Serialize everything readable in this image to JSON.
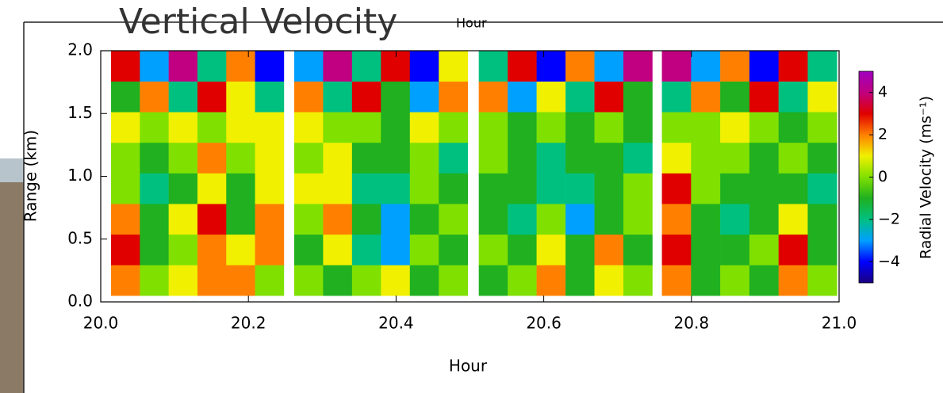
{
  "chart_data": {
    "type": "heatmap",
    "title": "Vertical Velocity",
    "top_xlabel": "Hour",
    "xlabel": "Hour",
    "ylabel": "Range (km)",
    "colorbar_label": "Radial Velocity (ms⁻¹)",
    "xlim": [
      20.0,
      21.0
    ],
    "xticks": [
      {
        "value": 20.0,
        "label": "20.0"
      },
      20.2,
      20.4,
      20.6,
      20.8,
      {
        "value": 21.0,
        "label": "21.0"
      }
    ],
    "ylim": [
      0.0,
      2.0
    ],
    "yticks": [
      {
        "value": 0.0,
        "label": "0.0"
      },
      0.5,
      {
        "value": 1.0,
        "label": "1.0"
      },
      1.5,
      {
        "value": 2.0,
        "label": "2.0"
      }
    ],
    "zlim": [
      -5,
      5
    ],
    "zticks": [
      {
        "value": -4,
        "label": "−4"
      },
      {
        "value": -2,
        "label": "−2"
      },
      0,
      2,
      4
    ],
    "colormap": [
      "#1a0080",
      "#0000ff",
      "#00a0ff",
      "#00c080",
      "#20b020",
      "#80e000",
      "#f0f000",
      "#ff8000",
      "#e00000",
      "#c00080",
      "#a000c0"
    ],
    "yrange": [
      0.05,
      2.0
    ],
    "panels": [
      {
        "x": [
          20.014,
          20.248
        ],
        "z": [
          [
            2,
            0,
            1,
            2,
            2,
            0
          ],
          [
            3,
            -1,
            0,
            2,
            1,
            2
          ],
          [
            2,
            -1,
            1,
            3,
            -1,
            2
          ],
          [
            0,
            -2,
            -1,
            1,
            -1,
            1
          ],
          [
            0,
            -1,
            0,
            2,
            0,
            1
          ],
          [
            1,
            0,
            1,
            0,
            1,
            1
          ],
          [
            -1,
            2,
            -2,
            3,
            1,
            -2
          ],
          [
            3,
            -3,
            4,
            -2,
            2,
            -4
          ]
        ]
      },
      {
        "x": [
          20.262,
          20.497
        ],
        "z": [
          [
            0,
            -1,
            0,
            1,
            -1,
            0
          ],
          [
            -1,
            1,
            -2,
            -3,
            0,
            -1
          ],
          [
            0,
            2,
            -1,
            -3,
            -1,
            0
          ],
          [
            1,
            1,
            -2,
            -2,
            0,
            -1
          ],
          [
            0,
            1,
            -1,
            -1,
            0,
            -2
          ],
          [
            1,
            0,
            0,
            -1,
            1,
            0
          ],
          [
            2,
            -2,
            3,
            -1,
            -3,
            2
          ],
          [
            -3,
            4,
            -2,
            3,
            -4,
            1
          ]
        ]
      },
      {
        "x": [
          20.512,
          20.747
        ],
        "z": [
          [
            -1,
            0,
            2,
            -1,
            1,
            0
          ],
          [
            0,
            -1,
            1,
            -1,
            2,
            -1
          ],
          [
            -1,
            -2,
            0,
            -3,
            -1,
            0
          ],
          [
            -1,
            -1,
            -2,
            -2,
            -1,
            0
          ],
          [
            0,
            -1,
            -2,
            -1,
            -1,
            -2
          ],
          [
            0,
            -1,
            0,
            -1,
            0,
            -1
          ],
          [
            2,
            -3,
            1,
            -2,
            3,
            -1
          ],
          [
            -2,
            3,
            -4,
            2,
            -3,
            4
          ]
        ]
      },
      {
        "x": [
          20.76,
          20.997
        ],
        "z": [
          [
            2,
            -1,
            0,
            -1,
            2,
            0
          ],
          [
            3,
            -1,
            -1,
            0,
            3,
            -1
          ],
          [
            2,
            -1,
            -2,
            -1,
            1,
            -1
          ],
          [
            3,
            0,
            -1,
            -1,
            -1,
            -2
          ],
          [
            1,
            0,
            0,
            -1,
            0,
            -1
          ],
          [
            0,
            0,
            1,
            0,
            -1,
            0
          ],
          [
            -2,
            2,
            -1,
            3,
            -2,
            1
          ],
          [
            4,
            -3,
            2,
            -4,
            3,
            -2
          ]
        ]
      }
    ]
  }
}
